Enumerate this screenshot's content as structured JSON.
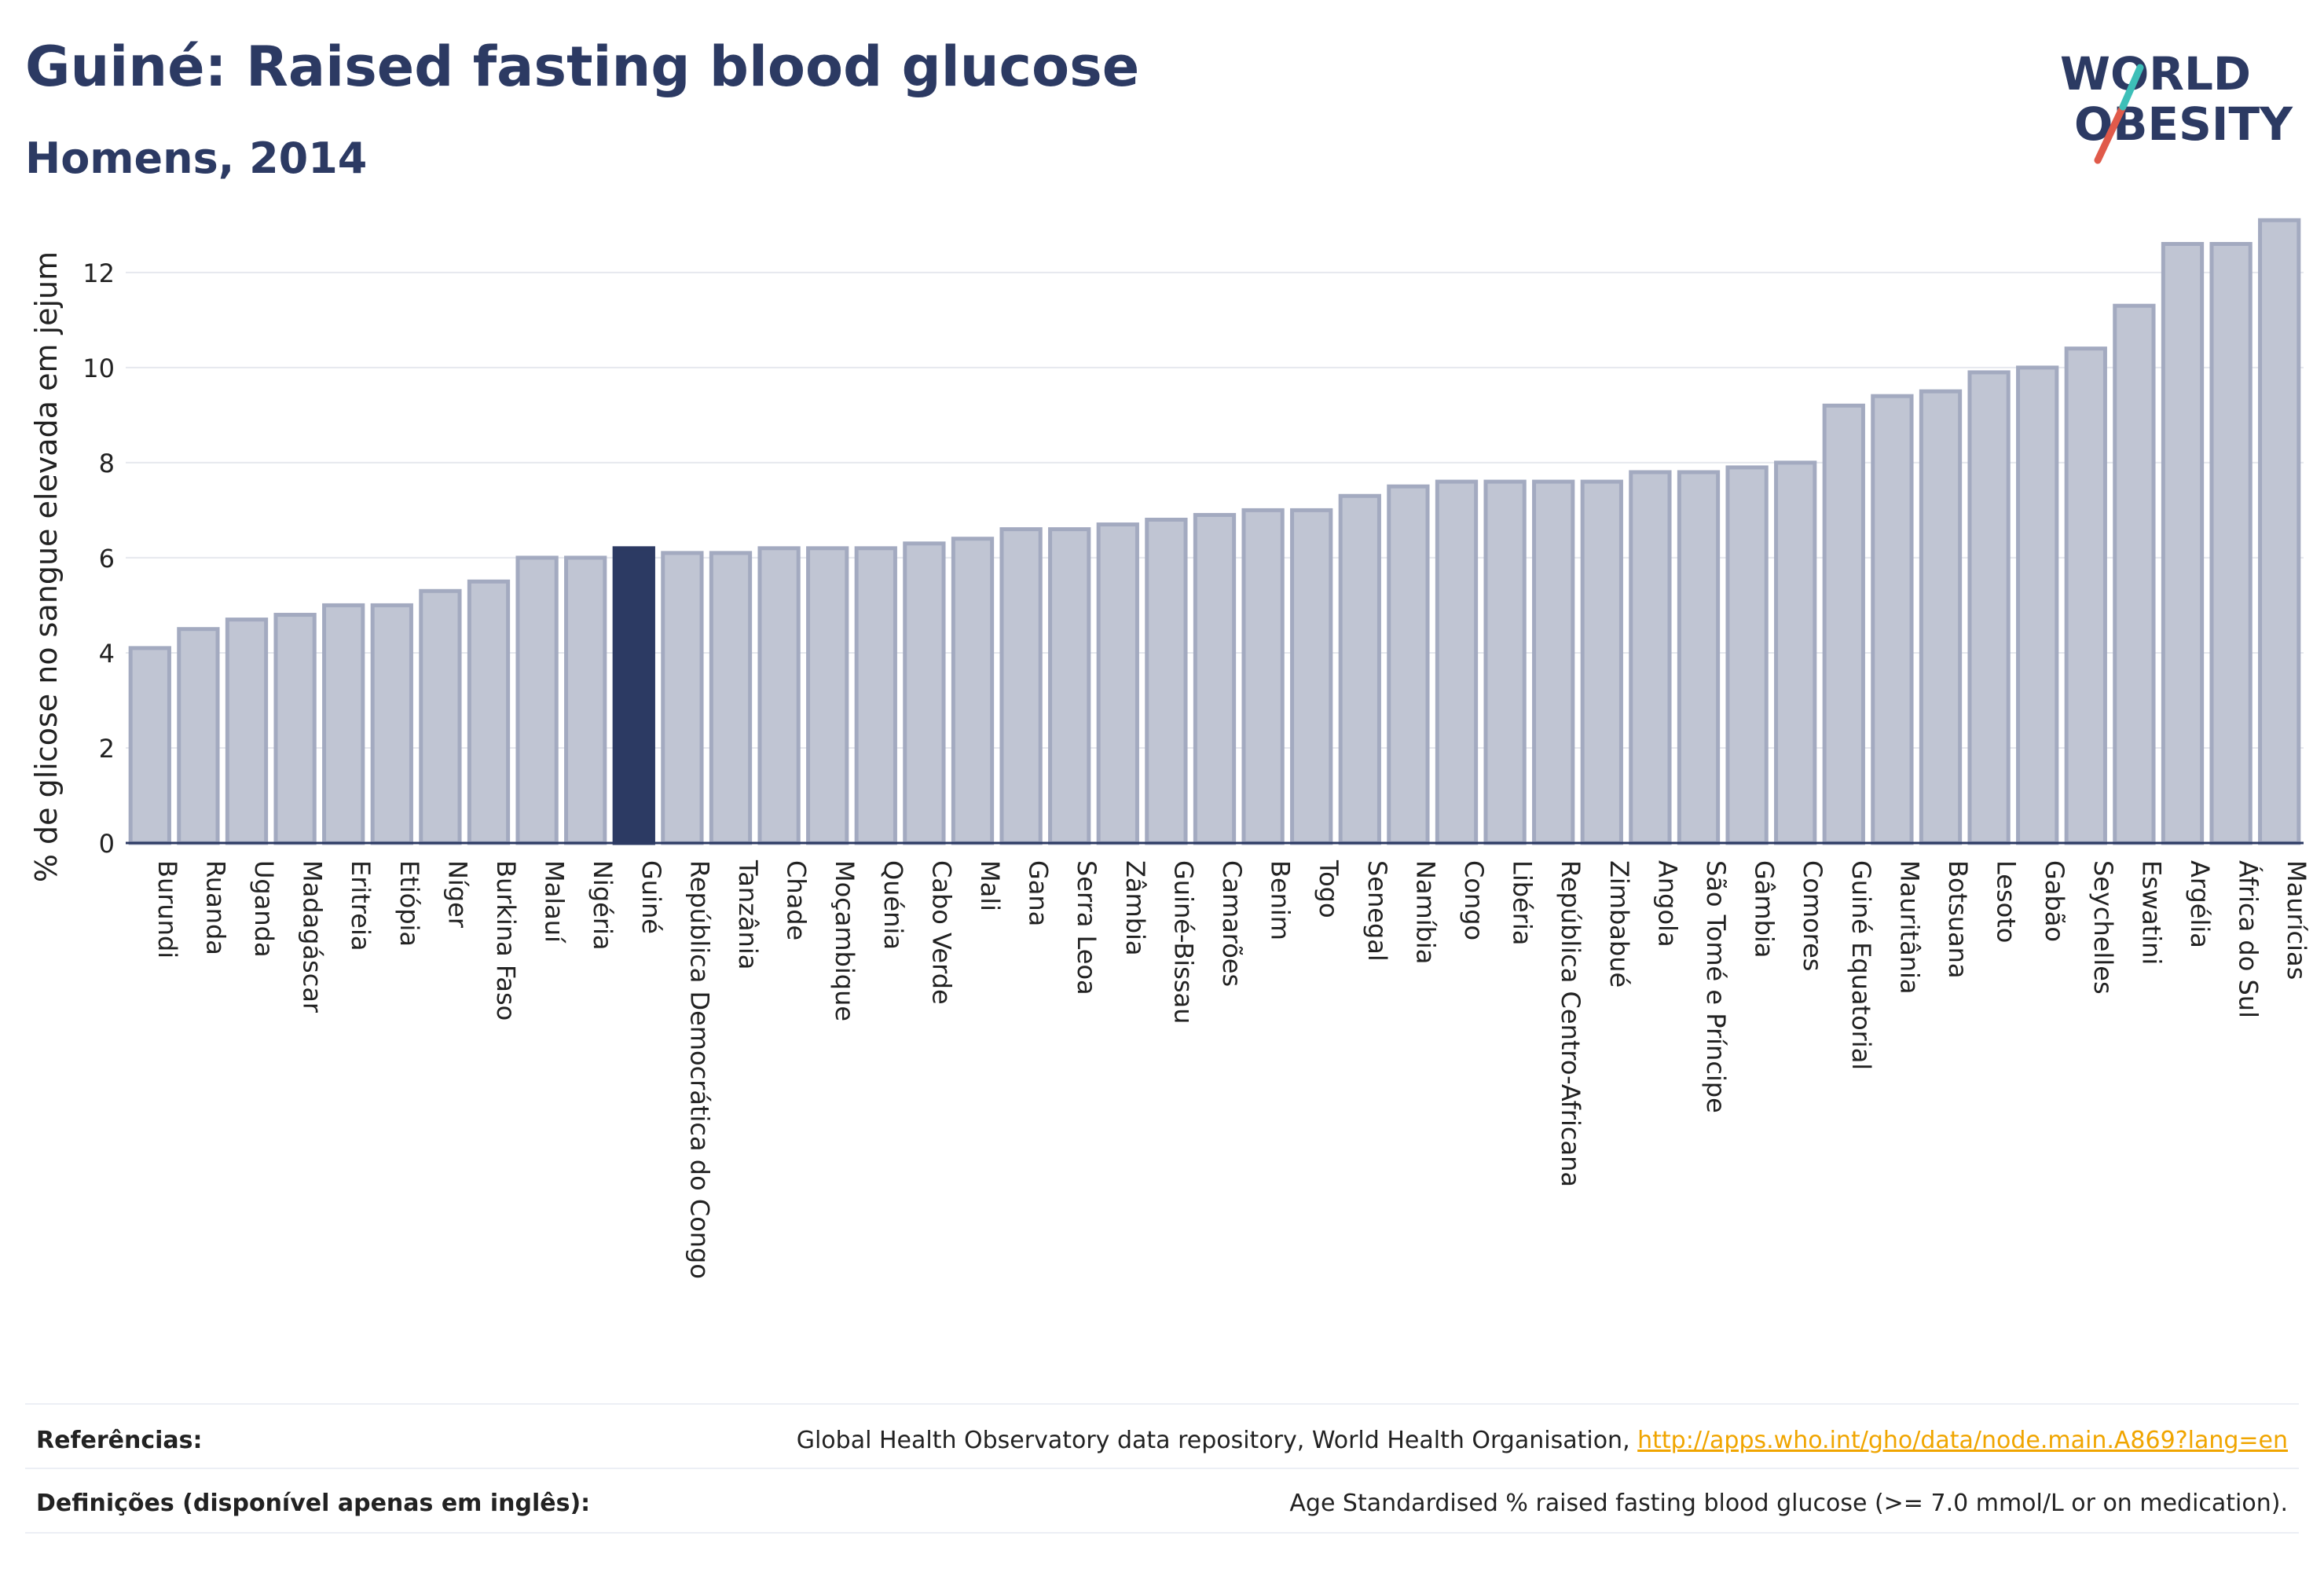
{
  "title": "Guiné: Raised fasting blood glucose",
  "subtitle": "Homens, 2014",
  "logo": {
    "line1": "WORLD",
    "line2": "OBESITY"
  },
  "colors": {
    "bar": "#c0c5d3",
    "bar_edge": "#a3aac0",
    "highlight": "#2c3a63",
    "title": "#2c3a63",
    "logo_slash": "#e05a4a",
    "logo_accent": "#3dbfb8"
  },
  "chart_data": {
    "type": "bar",
    "ylabel": "% de glicose no sangue elevada em jejum",
    "ylim": [
      0,
      13.6
    ],
    "yticks": [
      0,
      2,
      4,
      6,
      8,
      10,
      12
    ],
    "highlight": "Guiné",
    "categories": [
      "Burundi",
      "Ruanda",
      "Uganda",
      "Madagáscar",
      "Eritreia",
      "Etiópia",
      "Níger",
      "Burkina Faso",
      "Malauí",
      "Nigéria",
      "Guiné",
      "República Democrática do Congo",
      "Tanzânia",
      "Chade",
      "Moçambique",
      "Quénia",
      "Cabo Verde",
      "Mali",
      "Gana",
      "Serra Leoa",
      "Zâmbia",
      "Guiné-Bissau",
      "Camarões",
      "Benim",
      "Togo",
      "Senegal",
      "Namíbia",
      "Congo",
      "Libéria",
      "República Centro-Africana",
      "Zimbabué",
      "Angola",
      "São Tomé e Príncipe",
      "Gâmbia",
      "Comores",
      "Guiné Equatorial",
      "Mauritânia",
      "Botsuana",
      "Lesoto",
      "Gabão",
      "Seychelles",
      "Eswatini",
      "Argélia",
      "África do Sul",
      "Maurícias"
    ],
    "values": [
      4.1,
      4.5,
      4.7,
      4.8,
      5.0,
      5.0,
      5.3,
      5.5,
      6.0,
      6.0,
      6.2,
      6.1,
      6.1,
      6.2,
      6.2,
      6.2,
      6.3,
      6.4,
      6.6,
      6.6,
      6.7,
      6.8,
      6.9,
      7.0,
      7.0,
      7.3,
      7.5,
      7.6,
      7.6,
      7.6,
      7.6,
      7.8,
      7.8,
      7.9,
      8.0,
      9.2,
      9.4,
      9.5,
      9.9,
      10.0,
      10.4,
      11.3,
      12.6,
      12.6,
      13.1
    ]
  },
  "references": {
    "label": "Referências:",
    "text": "Global Health Observatory data repository, World Health Organisation, ",
    "link": "http://apps.who.int/gho/data/node.main.A869?lang=en"
  },
  "definitions": {
    "label": "Definições (disponível apenas em inglês):",
    "text": "Age Standardised % raised fasting blood glucose (>= 7.0 mmol/L or on medication)."
  }
}
